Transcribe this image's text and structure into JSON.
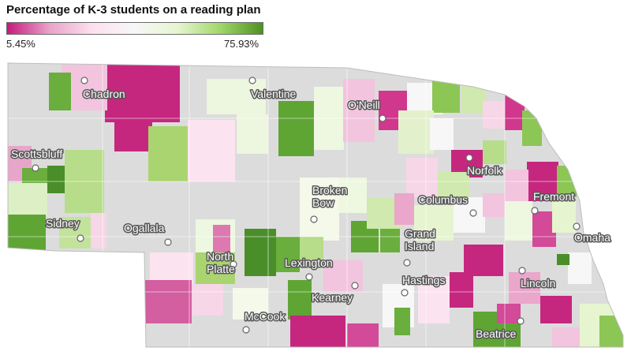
{
  "title": "Percentage of K-3 students on a reading plan",
  "legend": {
    "min_label": "5.45%",
    "max_label": "75.93%",
    "gradient_colors": [
      "#c51b7d",
      "#e9a3c9",
      "#fde0ef",
      "#f7f7f7",
      "#e6f5d0",
      "#a1d76a",
      "#4d9221"
    ]
  },
  "colors": {
    "no_data": "#dcdcdc",
    "district_border": "#ffffff"
  },
  "cities": [
    {
      "name": "Chadron",
      "lines": [
        "Chadron"
      ]
    },
    {
      "name": "Valentine",
      "lines": [
        "Valentine"
      ]
    },
    {
      "name": "O'Neill",
      "lines": [
        "O'Neill"
      ]
    },
    {
      "name": "Scottsbluff",
      "lines": [
        "Scottsbluff"
      ]
    },
    {
      "name": "Norfolk",
      "lines": [
        "Norfolk"
      ]
    },
    {
      "name": "Broken Bow",
      "lines": [
        "Broken",
        "Bow"
      ]
    },
    {
      "name": "Columbus",
      "lines": [
        "Columbus"
      ]
    },
    {
      "name": "Fremont",
      "lines": [
        "Fremont"
      ]
    },
    {
      "name": "Sidney",
      "lines": [
        "Sidney"
      ]
    },
    {
      "name": "Ogallala",
      "lines": [
        "Ogallala"
      ]
    },
    {
      "name": "Grand Island",
      "lines": [
        "Grand",
        "Island"
      ]
    },
    {
      "name": "Omaha",
      "lines": [
        "Omaha"
      ]
    },
    {
      "name": "North Platte",
      "lines": [
        "North",
        "Platte"
      ]
    },
    {
      "name": "Lexington",
      "lines": [
        "Lexington"
      ]
    },
    {
      "name": "Lincoln",
      "lines": [
        "Lincoln"
      ]
    },
    {
      "name": "Hastings",
      "lines": [
        "Hastings"
      ]
    },
    {
      "name": "Kearney",
      "lines": [
        "Kearney"
      ]
    },
    {
      "name": "McCook",
      "lines": [
        "McCook"
      ]
    },
    {
      "name": "Beatrice",
      "lines": [
        "Beatrice"
      ]
    }
  ]
}
